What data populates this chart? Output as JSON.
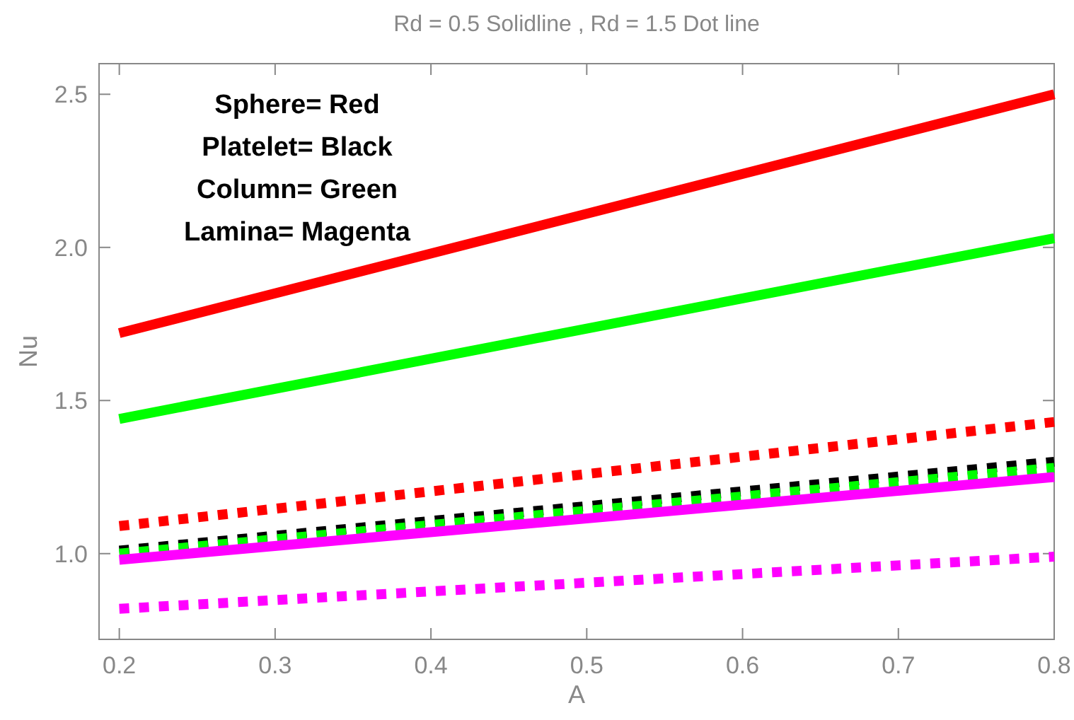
{
  "chart_data": {
    "type": "line",
    "title": "Rd = 0.5  Solidline  , Rd = 1.5  Dot  line",
    "xlabel": "A",
    "ylabel": "Nu",
    "annotations": [
      "Sphere= Red",
      "Platelet= Black",
      "Column= Green",
      "Lamina= Magenta"
    ],
    "x": [
      0.2,
      0.8
    ],
    "xlim": [
      0.187,
      0.8
    ],
    "xticks": [
      0.2,
      0.3,
      0.4,
      0.5,
      0.6,
      0.7,
      0.8
    ],
    "ylim": [
      0.72,
      2.6
    ],
    "yticks": [
      {
        "value": 1.0,
        "label": "1.0"
      },
      {
        "value": 1.5,
        "label": "1.5"
      },
      {
        "value": 2.0,
        "label": "2.0"
      },
      {
        "value": 2.5,
        "label": "2.5"
      }
    ],
    "grid": false,
    "series": [
      {
        "color": "#ff0000",
        "line_style": "solid",
        "values": [
          1.72,
          2.5
        ]
      },
      {
        "color": "#00ff00",
        "line_style": "solid",
        "values": [
          1.44,
          2.03
        ]
      },
      {
        "color": "#ff0000",
        "line_style": "dotted",
        "values": [
          1.09,
          1.43
        ]
      },
      {
        "color": "#000000",
        "line_style": "dotted",
        "values": [
          1.01,
          1.3
        ]
      },
      {
        "color": "#00ff00",
        "line_style": "dotted",
        "values": [
          1.0,
          1.28
        ]
      },
      {
        "color": "#ff00ff",
        "line_style": "solid",
        "values": [
          0.98,
          1.25
        ]
      },
      {
        "color": "#ff00ff",
        "line_style": "dotted",
        "values": [
          0.82,
          0.99
        ]
      }
    ]
  }
}
